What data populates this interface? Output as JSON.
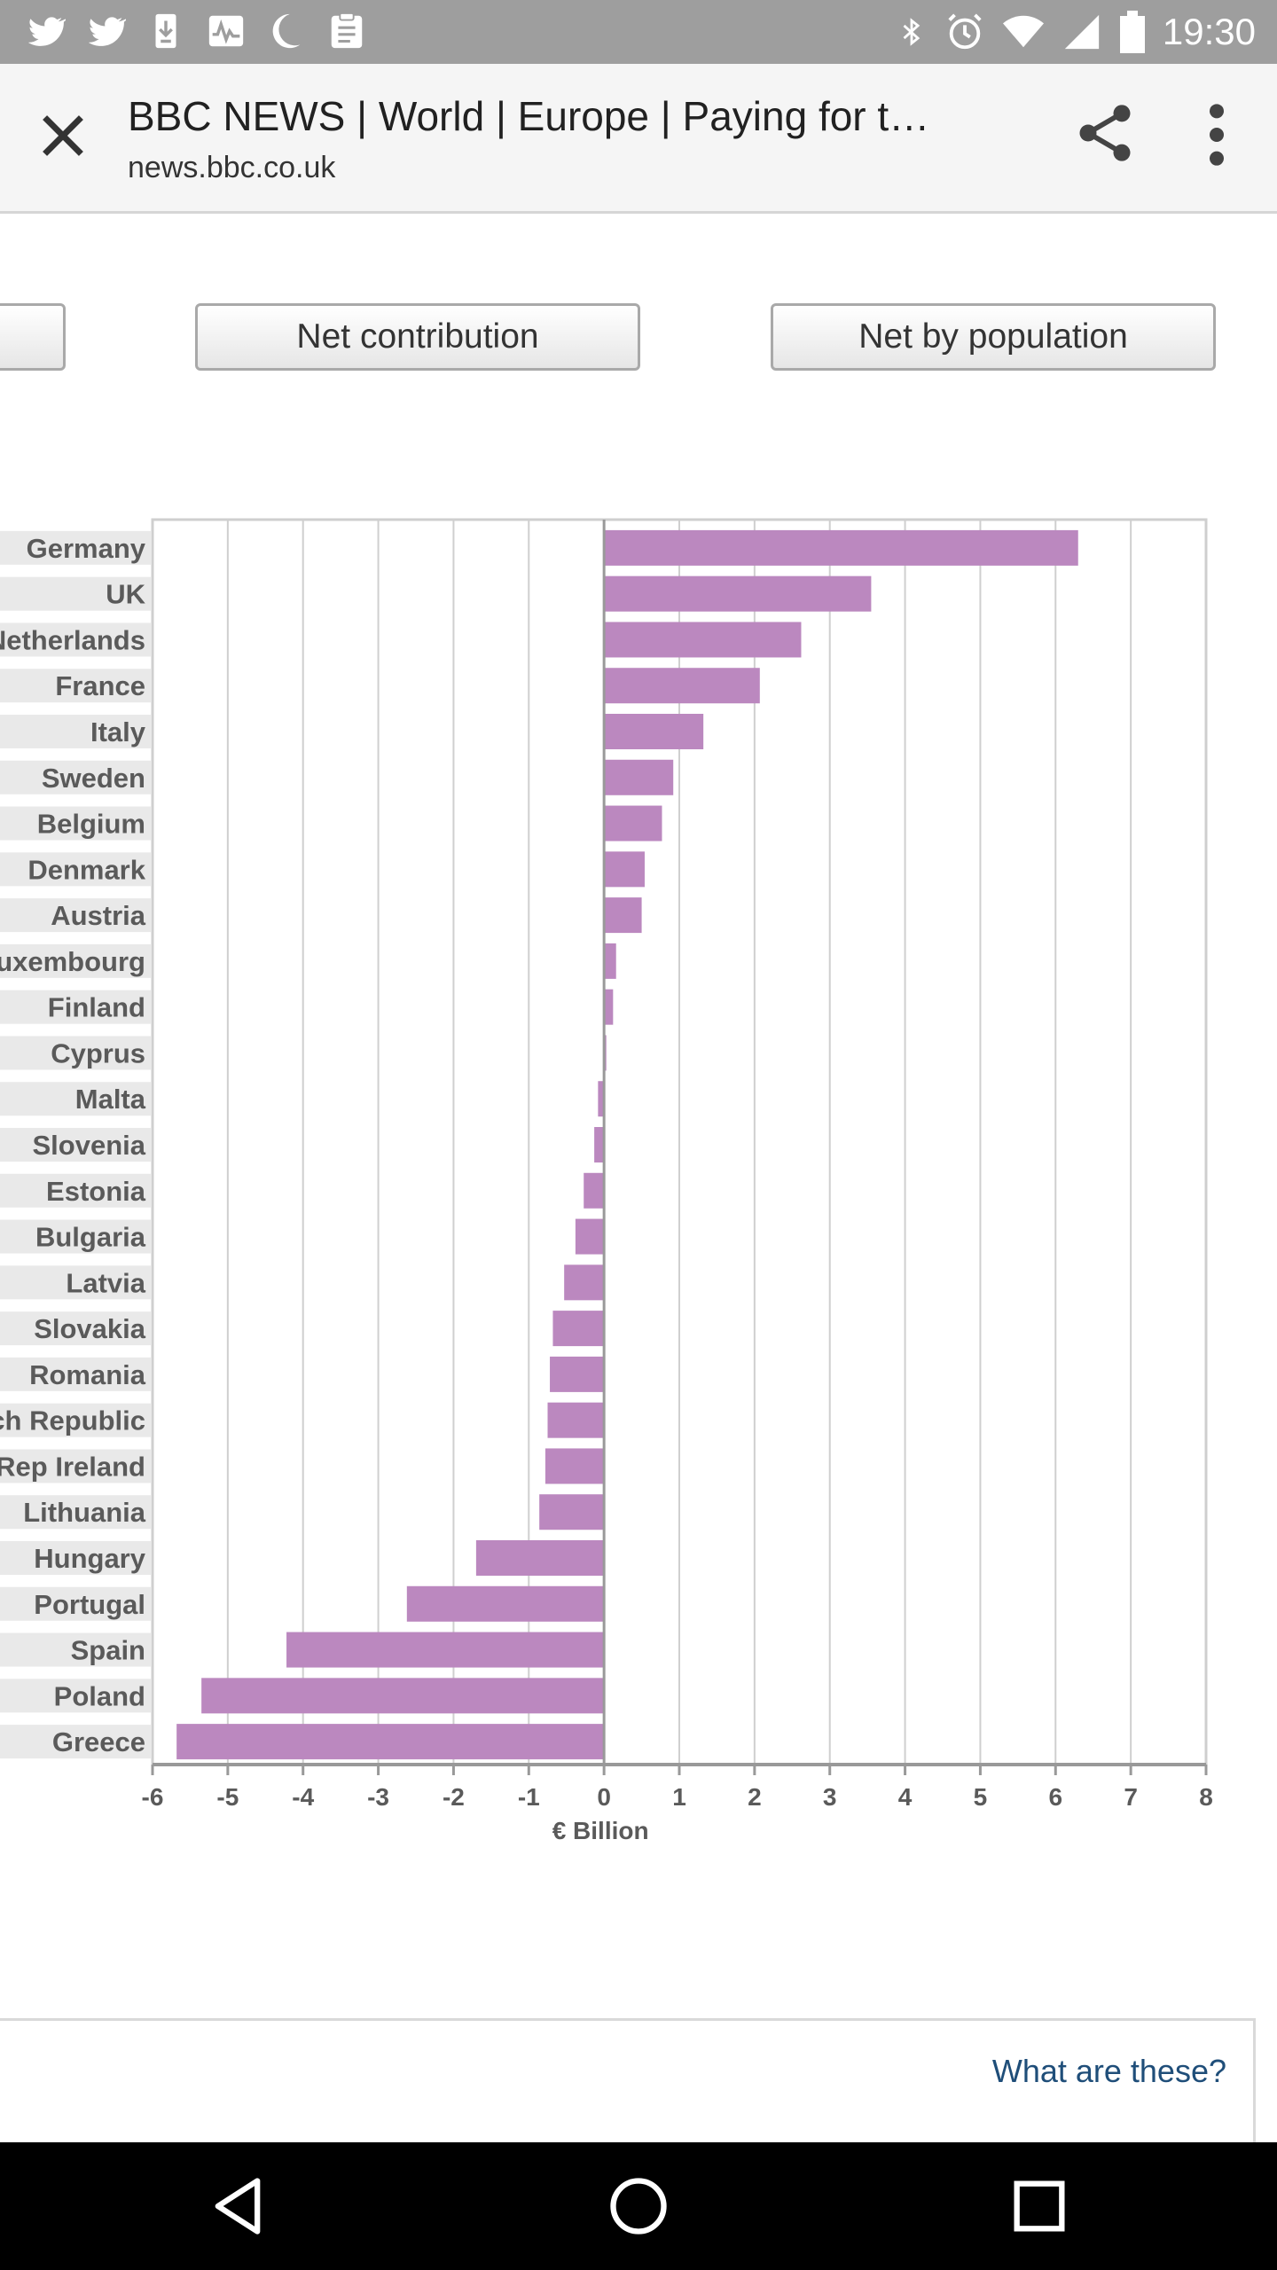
{
  "status_bar": {
    "time": "19:30",
    "left_icons": [
      "twitter-icon",
      "twitter-icon",
      "download-icon",
      "activity-icon",
      "moon-icon",
      "clipboard-icon"
    ],
    "right_icons": [
      "bluetooth-icon",
      "alarm-icon",
      "wifi-icon",
      "signal-icon",
      "battery-icon"
    ]
  },
  "toolbar": {
    "title": "BBC NEWS | World | Europe | Paying for t…",
    "url": "news.bbc.co.uk"
  },
  "tabs": {
    "net_contribution": "Net contribution",
    "net_by_population": "Net by population"
  },
  "chart_data": {
    "type": "bar",
    "orientation": "horizontal",
    "categories": [
      "Germany",
      "UK",
      "Netherlands",
      "France",
      "Italy",
      "Sweden",
      "Belgium",
      "Denmark",
      "Austria",
      "Luxembourg",
      "Finland",
      "Cyprus",
      "Malta",
      "Slovenia",
      "Estonia",
      "Bulgaria",
      "Latvia",
      "Slovakia",
      "Romania",
      "Czech Republic",
      "Rep Ireland",
      "Lithuania",
      "Hungary",
      "Portugal",
      "Spain",
      "Poland",
      "Greece"
    ],
    "values": [
      6.3,
      3.55,
      2.62,
      2.07,
      1.32,
      0.92,
      0.77,
      0.54,
      0.5,
      0.16,
      0.12,
      0.03,
      -0.08,
      -0.13,
      -0.27,
      -0.38,
      -0.53,
      -0.68,
      -0.72,
      -0.75,
      -0.78,
      -0.86,
      -1.7,
      -2.62,
      -4.22,
      -5.35,
      -5.68
    ],
    "xlabel": "€ Billion",
    "xlim": [
      -6,
      8
    ],
    "xticks": [
      "-6",
      "-5",
      "-4",
      "-3",
      "-2",
      "-1",
      "0",
      "1",
      "2",
      "3",
      "4",
      "5",
      "6",
      "7",
      "8"
    ],
    "grid": true,
    "bar_color": "#bb88bf"
  },
  "footer": {
    "link": "What are these?"
  }
}
